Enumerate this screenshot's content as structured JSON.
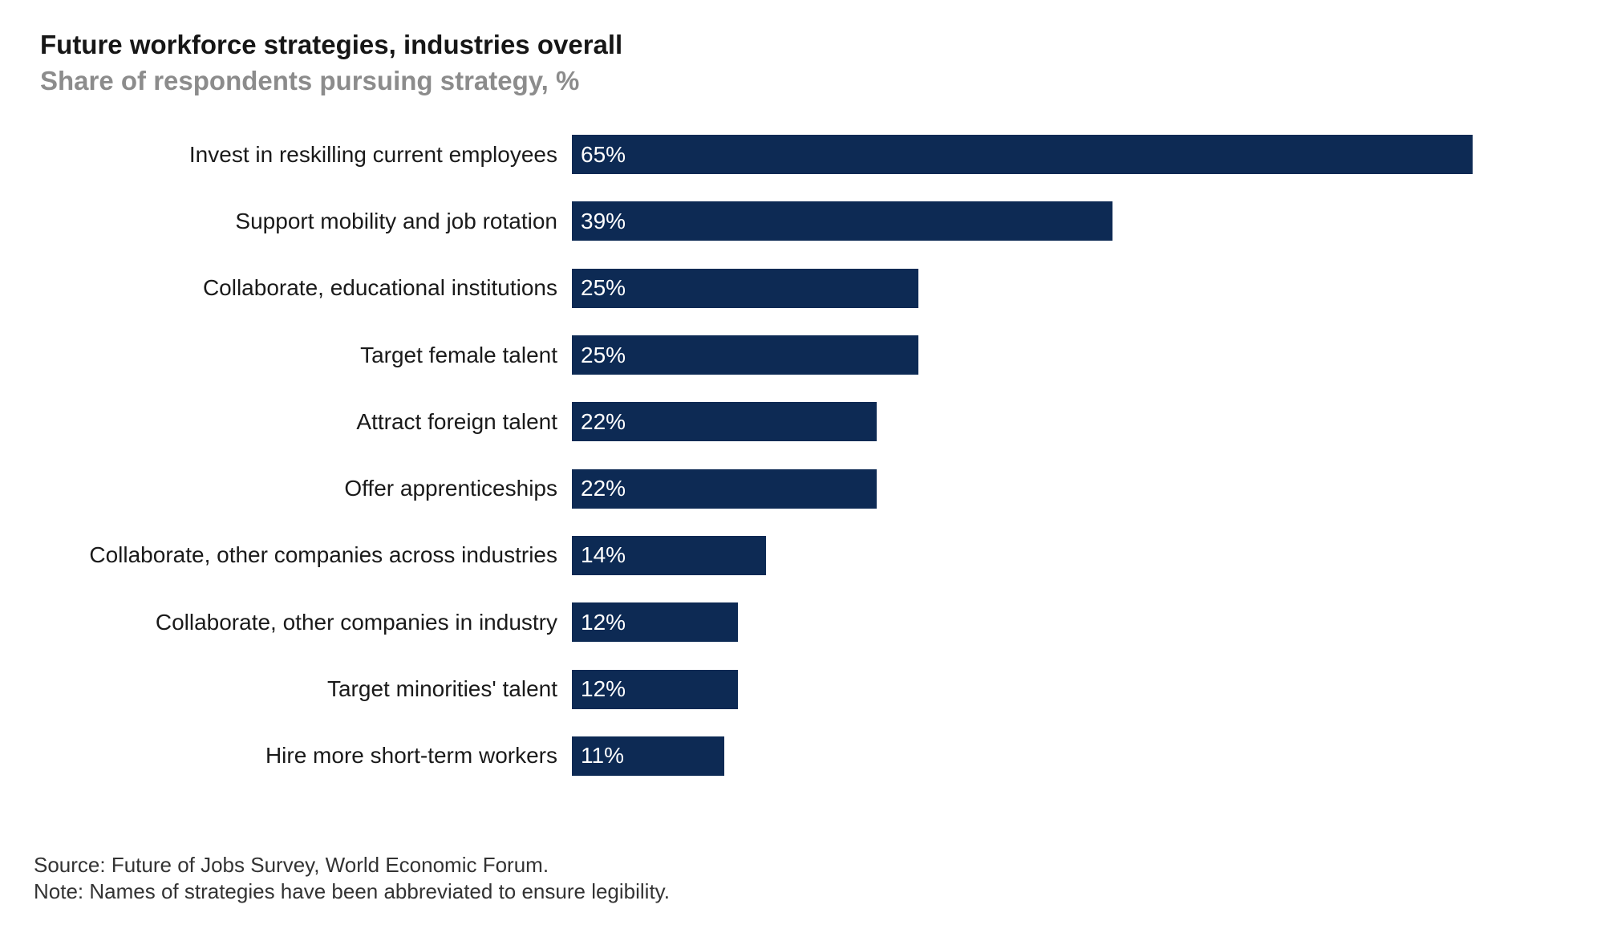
{
  "header": {
    "title": "Future workforce strategies, industries overall",
    "subtitle": "Share of respondents pursuing strategy, %"
  },
  "chart_data": {
    "type": "bar",
    "orientation": "horizontal",
    "title": "Future workforce strategies, industries overall",
    "subtitle": "Share of respondents pursuing strategy, %",
    "categories": [
      "Invest in reskilling current employees",
      "Support mobility and job rotation",
      "Collaborate, educational institutions",
      "Target female talent",
      "Attract foreign talent",
      "Offer apprenticeships",
      "Collaborate, other companies across industries",
      "Collaborate, other companies in industry",
      "Target minorities' talent",
      "Hire more short-term workers"
    ],
    "values": [
      65,
      39,
      25,
      25,
      22,
      22,
      14,
      12,
      12,
      11
    ],
    "value_labels": [
      "65%",
      "39%",
      "25%",
      "25%",
      "22%",
      "22%",
      "14%",
      "12%",
      "12%",
      "11%"
    ],
    "unit": "%",
    "xlim": [
      0,
      65
    ],
    "grid": false,
    "legend": false,
    "data_labels_position": "inside-left",
    "bar_color": "#0d2a54",
    "value_label_color": "#ffffff"
  },
  "footer": {
    "source": "Source: Future of Jobs Survey, World Economic Forum.",
    "note": "Note: Names of strategies have been abbreviated to ensure legibility."
  }
}
